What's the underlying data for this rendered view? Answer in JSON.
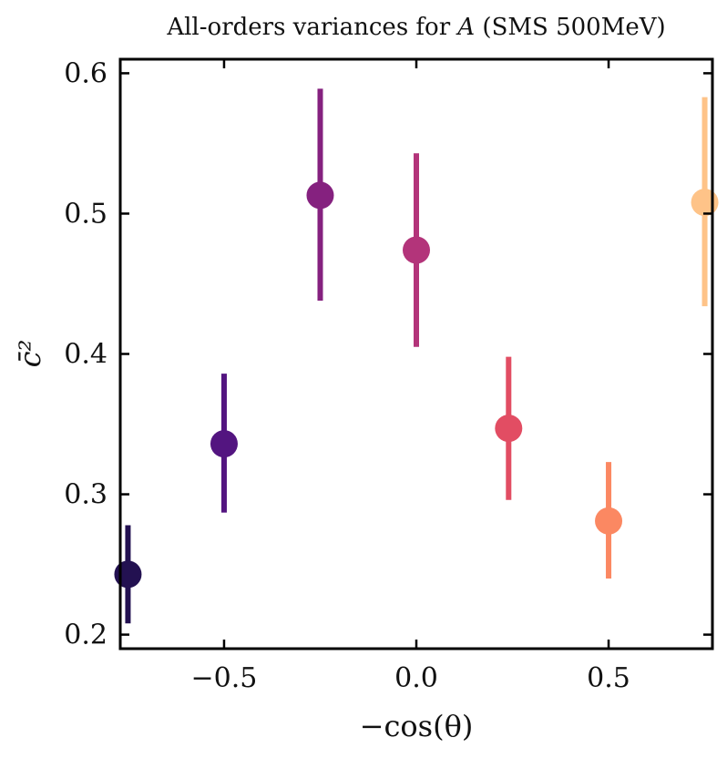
{
  "chart_data": {
    "type": "scatter",
    "title": "All-orders variances for A (SMS 500MeV)",
    "title_parts": {
      "pre": "All-orders variances for ",
      "var": "A",
      "post": " (SMS 500MeV)"
    },
    "xlabel": "−cos(θ)",
    "ylabel": "c̄²",
    "xlim": [
      -0.77,
      0.77
    ],
    "ylim": [
      0.19,
      0.61
    ],
    "xticks": [
      -0.5,
      0.0,
      0.5
    ],
    "xtick_labels": [
      "−0.5",
      "0.0",
      "0.5"
    ],
    "yticks": [
      0.2,
      0.3,
      0.4,
      0.5,
      0.6
    ],
    "ytick_labels": [
      "0.2",
      "0.3",
      "0.4",
      "0.5",
      "0.6"
    ],
    "grid": false,
    "points": [
      {
        "x": -0.75,
        "y": 0.243,
        "ylow": 0.208,
        "yhigh": 0.278,
        "color": "#231151"
      },
      {
        "x": -0.5,
        "y": 0.336,
        "ylow": 0.287,
        "yhigh": 0.386,
        "color": "#531580"
      },
      {
        "x": -0.25,
        "y": 0.513,
        "ylow": 0.438,
        "yhigh": 0.589,
        "color": "#85217f"
      },
      {
        "x": 0.0,
        "y": 0.474,
        "ylow": 0.405,
        "yhigh": 0.543,
        "color": "#b3347a"
      },
      {
        "x": 0.24,
        "y": 0.347,
        "ylow": 0.296,
        "yhigh": 0.398,
        "color": "#e24d63"
      },
      {
        "x": 0.5,
        "y": 0.281,
        "ylow": 0.24,
        "yhigh": 0.323,
        "color": "#fb8862"
      },
      {
        "x": 0.75,
        "y": 0.508,
        "ylow": 0.434,
        "yhigh": 0.583,
        "color": "#fec388"
      }
    ]
  }
}
